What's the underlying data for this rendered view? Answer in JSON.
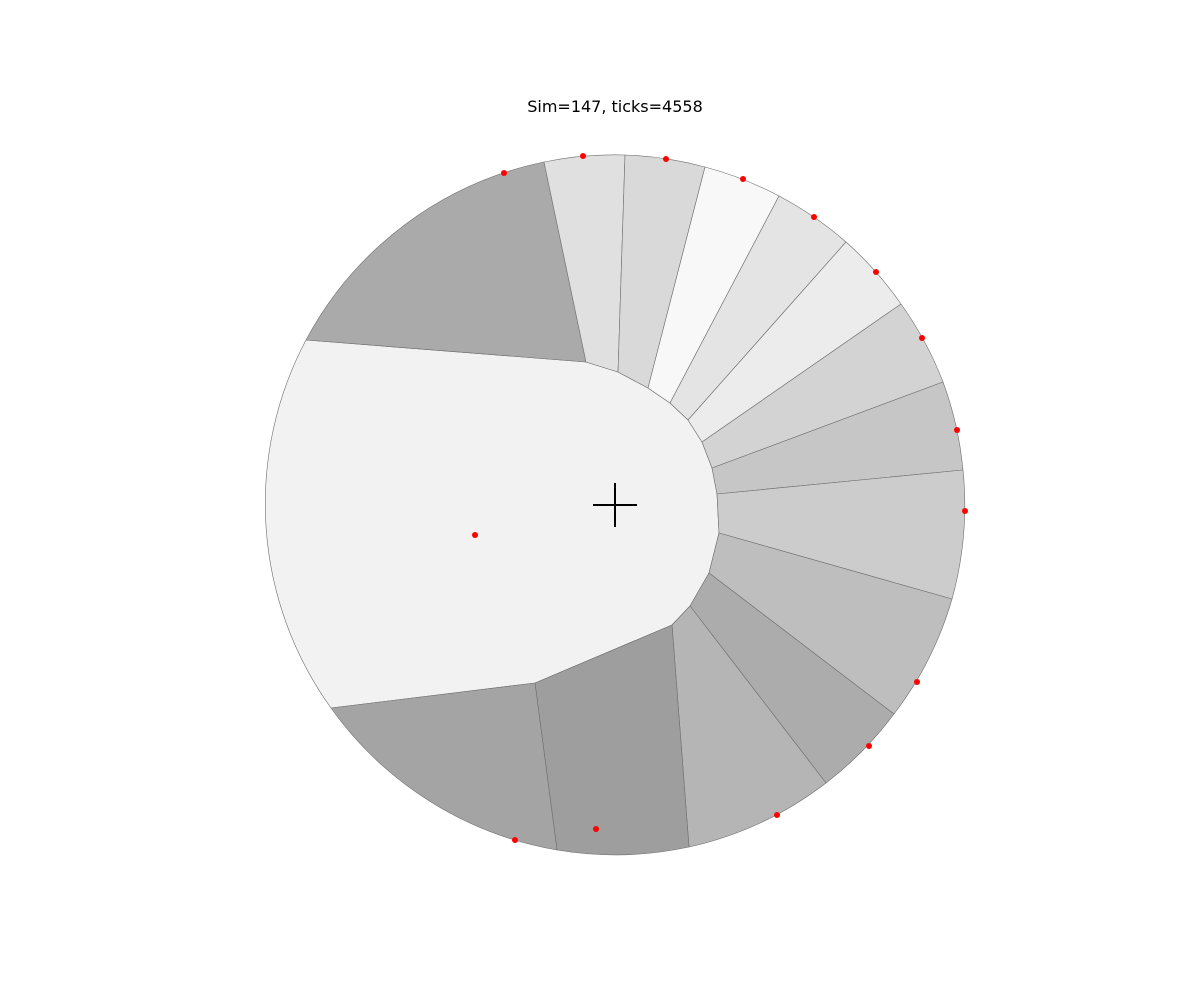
{
  "title": "Sim=147, ticks=4558",
  "colors": {
    "seed_point": "#ff0000",
    "cell_edge": "#6e6e6e",
    "marker": "#000000",
    "background": "#ffffff"
  },
  "icons": {
    "center_marker": "crosshair-icon",
    "seed": "red-dot"
  },
  "cells": [
    {
      "name": "central-cell",
      "fill": "#f2f2f2"
    },
    {
      "name": "upper-left-wedge",
      "fill": "#aaaaaa"
    },
    {
      "name": "wedge-1",
      "fill": "#e0e0e0"
    },
    {
      "name": "wedge-2",
      "fill": "#d9d9d9"
    },
    {
      "name": "wedge-3",
      "fill": "#f8f8f8"
    },
    {
      "name": "wedge-4",
      "fill": "#e4e4e4"
    },
    {
      "name": "wedge-5",
      "fill": "#ececec"
    },
    {
      "name": "wedge-6",
      "fill": "#d3d3d3"
    },
    {
      "name": "wedge-7",
      "fill": "#c6c6c6"
    },
    {
      "name": "wedge-8",
      "fill": "#cccccc"
    },
    {
      "name": "wedge-9",
      "fill": "#bebebe"
    },
    {
      "name": "wedge-10",
      "fill": "#acacac"
    },
    {
      "name": "wedge-11",
      "fill": "#b5b5b5"
    },
    {
      "name": "wedge-12",
      "fill": "#9e9e9e"
    },
    {
      "name": "lower-left-wedge",
      "fill": "#a4a4a4"
    }
  ]
}
